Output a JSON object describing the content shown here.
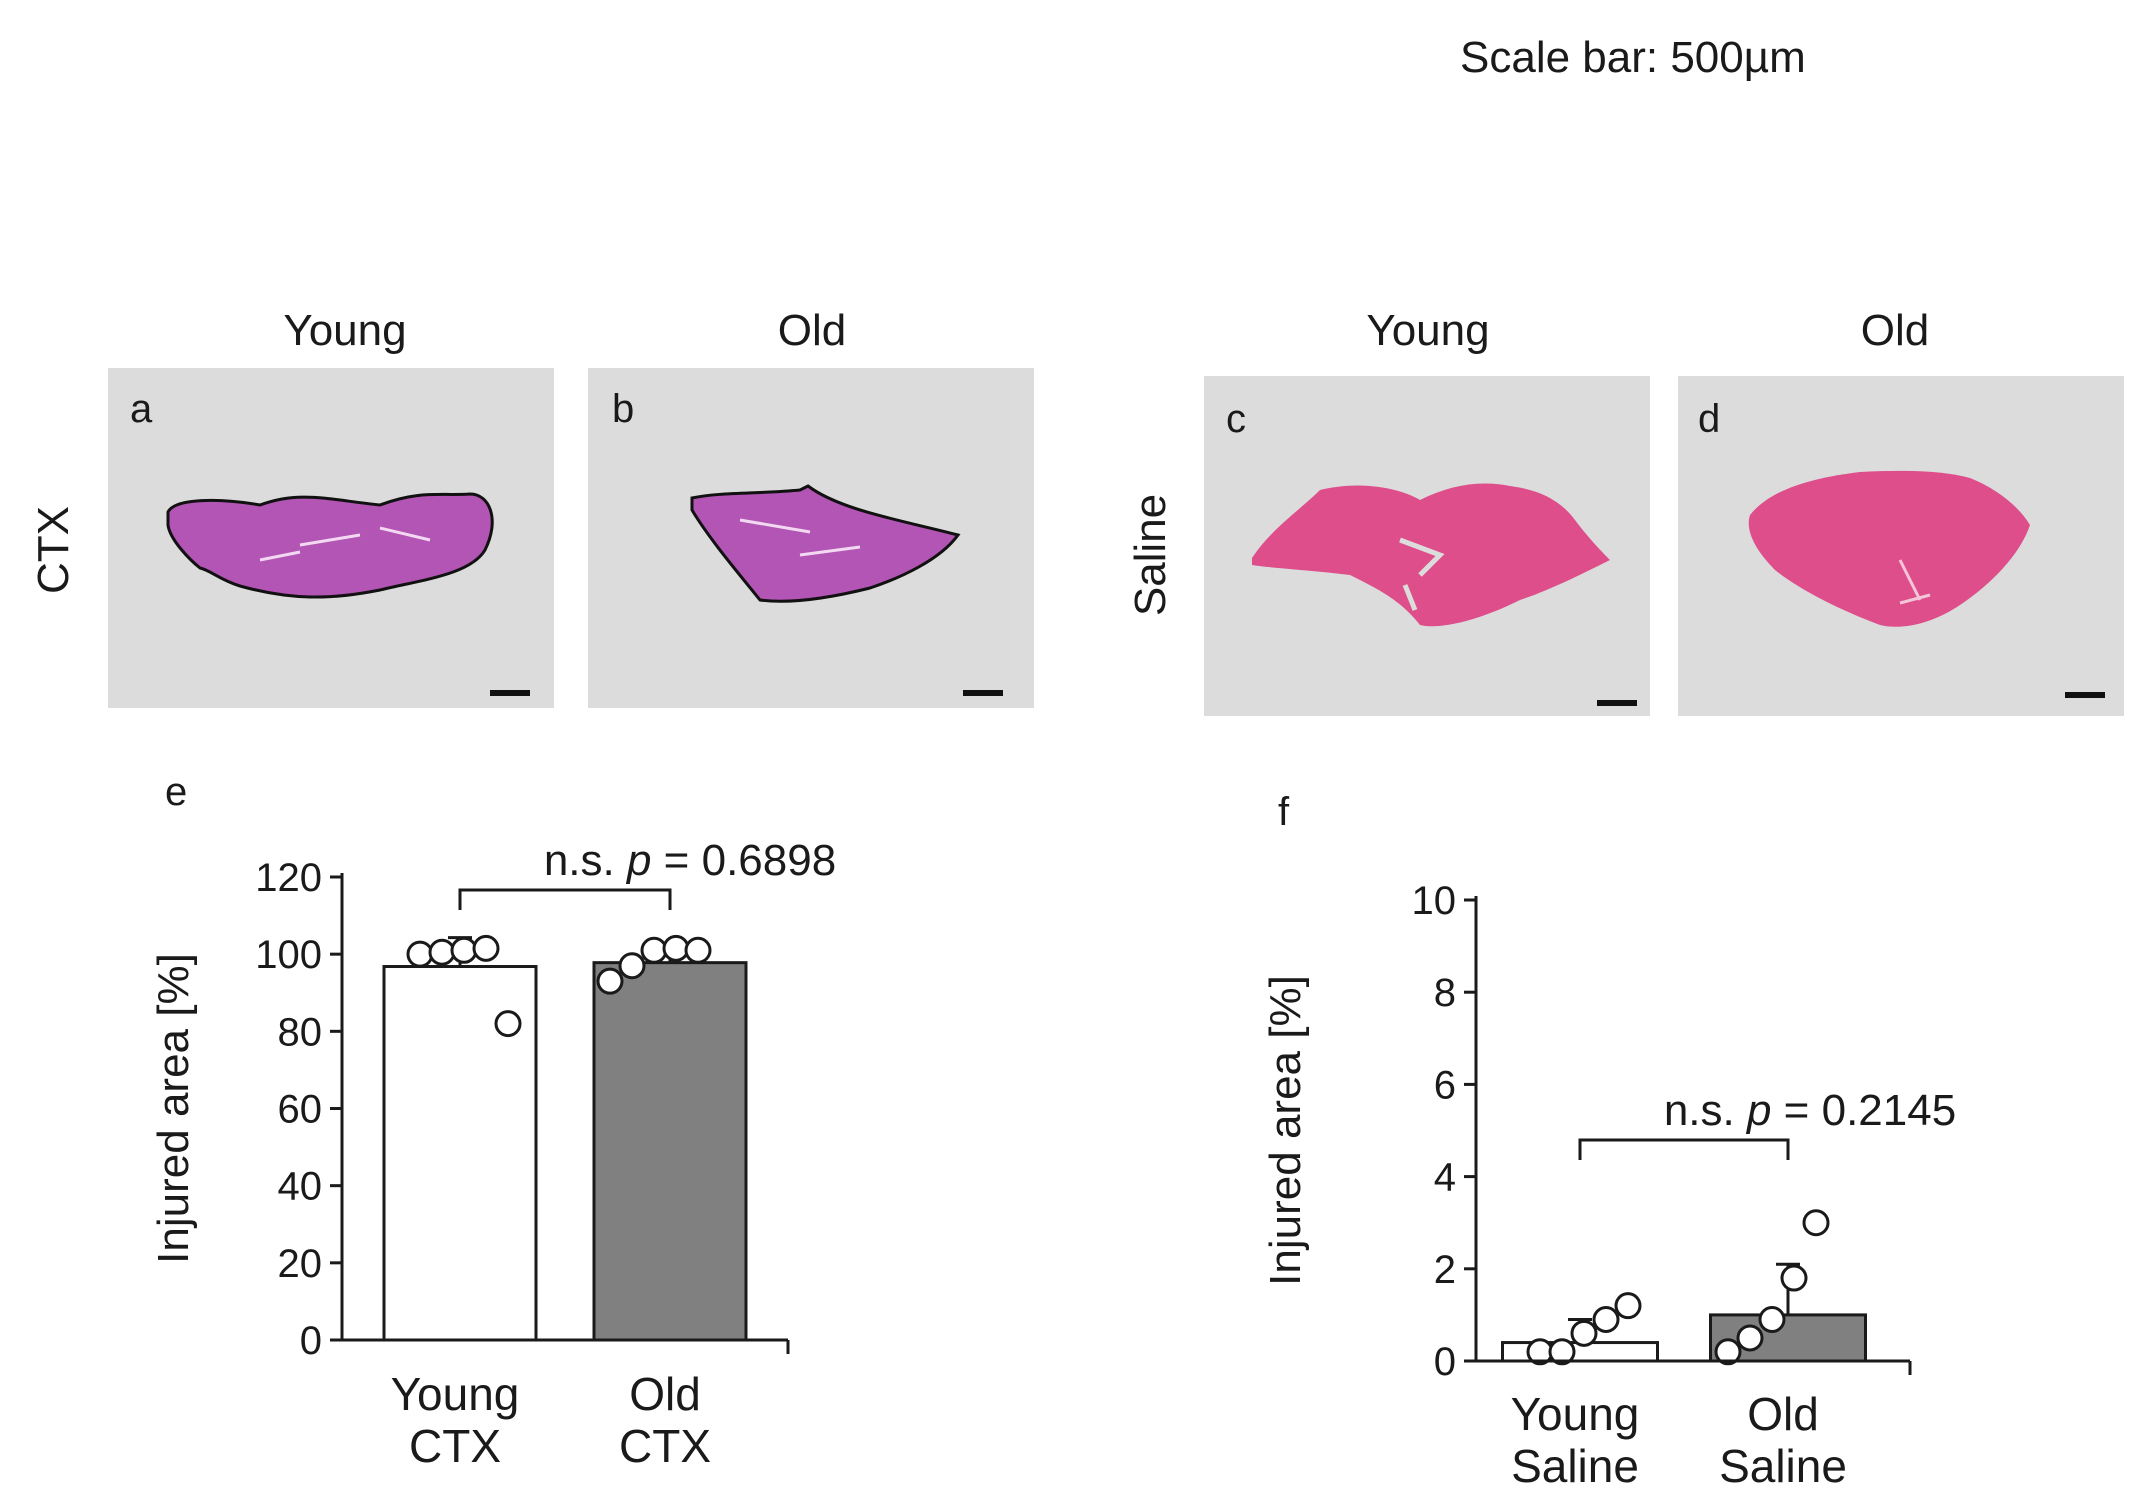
{
  "scale_note": "Scale bar: 500µm",
  "histology": {
    "ctx": {
      "row_label": "CTX",
      "panels": [
        {
          "label": "a",
          "column": "Young"
        },
        {
          "label": "b",
          "column": "Old"
        }
      ]
    },
    "saline": {
      "row_label": "Saline",
      "panels": [
        {
          "label": "c",
          "column": "Young"
        },
        {
          "label": "d",
          "column": "Old"
        }
      ]
    }
  },
  "colors": {
    "tissue_ctx": "#b255b4",
    "tissue_saline": "#dd4e8a",
    "slide_bg": "#dcdcdc",
    "bar_young": "#ffffff",
    "bar_old": "#808080"
  },
  "chart_data": [
    {
      "panel": "e",
      "type": "bar",
      "categories": [
        "Young\nCTX",
        "Old\nCTX"
      ],
      "category_lines": [
        [
          "Young",
          "CTX"
        ],
        [
          "Old",
          "CTX"
        ]
      ],
      "values": [
        96.8,
        97.8
      ],
      "errors": [
        7.5,
        3.5
      ],
      "points": [
        [
          100,
          100.5,
          101,
          101.5,
          82
        ],
        [
          93,
          97,
          101,
          101.5,
          101
        ]
      ],
      "ylabel": "Injured area [%]",
      "ylim": [
        0,
        120
      ],
      "yticks": [
        0,
        20,
        40,
        60,
        80,
        100,
        120
      ],
      "annotation": {
        "ns": "n.s.",
        "p": "p",
        "value": " = 0.6898"
      }
    },
    {
      "panel": "f",
      "type": "bar",
      "categories": [
        "Young\nSaline",
        "Old\nSaline"
      ],
      "category_lines": [
        [
          "Young",
          "Saline"
        ],
        [
          "Old",
          "Saline"
        ]
      ],
      "values": [
        0.4,
        1.0
      ],
      "errors": [
        0.5,
        1.1
      ],
      "points": [
        [
          0.2,
          0.2,
          0.6,
          0.9,
          1.2
        ],
        [
          0.2,
          0.5,
          0.9,
          1.8,
          3.0
        ]
      ],
      "ylabel": "Injured area [%]",
      "ylim": [
        0,
        10
      ],
      "yticks": [
        0,
        2,
        4,
        6,
        8,
        10
      ],
      "annotation": {
        "ns": "n.s.",
        "p": "p",
        "value": " = 0.2145"
      }
    }
  ]
}
